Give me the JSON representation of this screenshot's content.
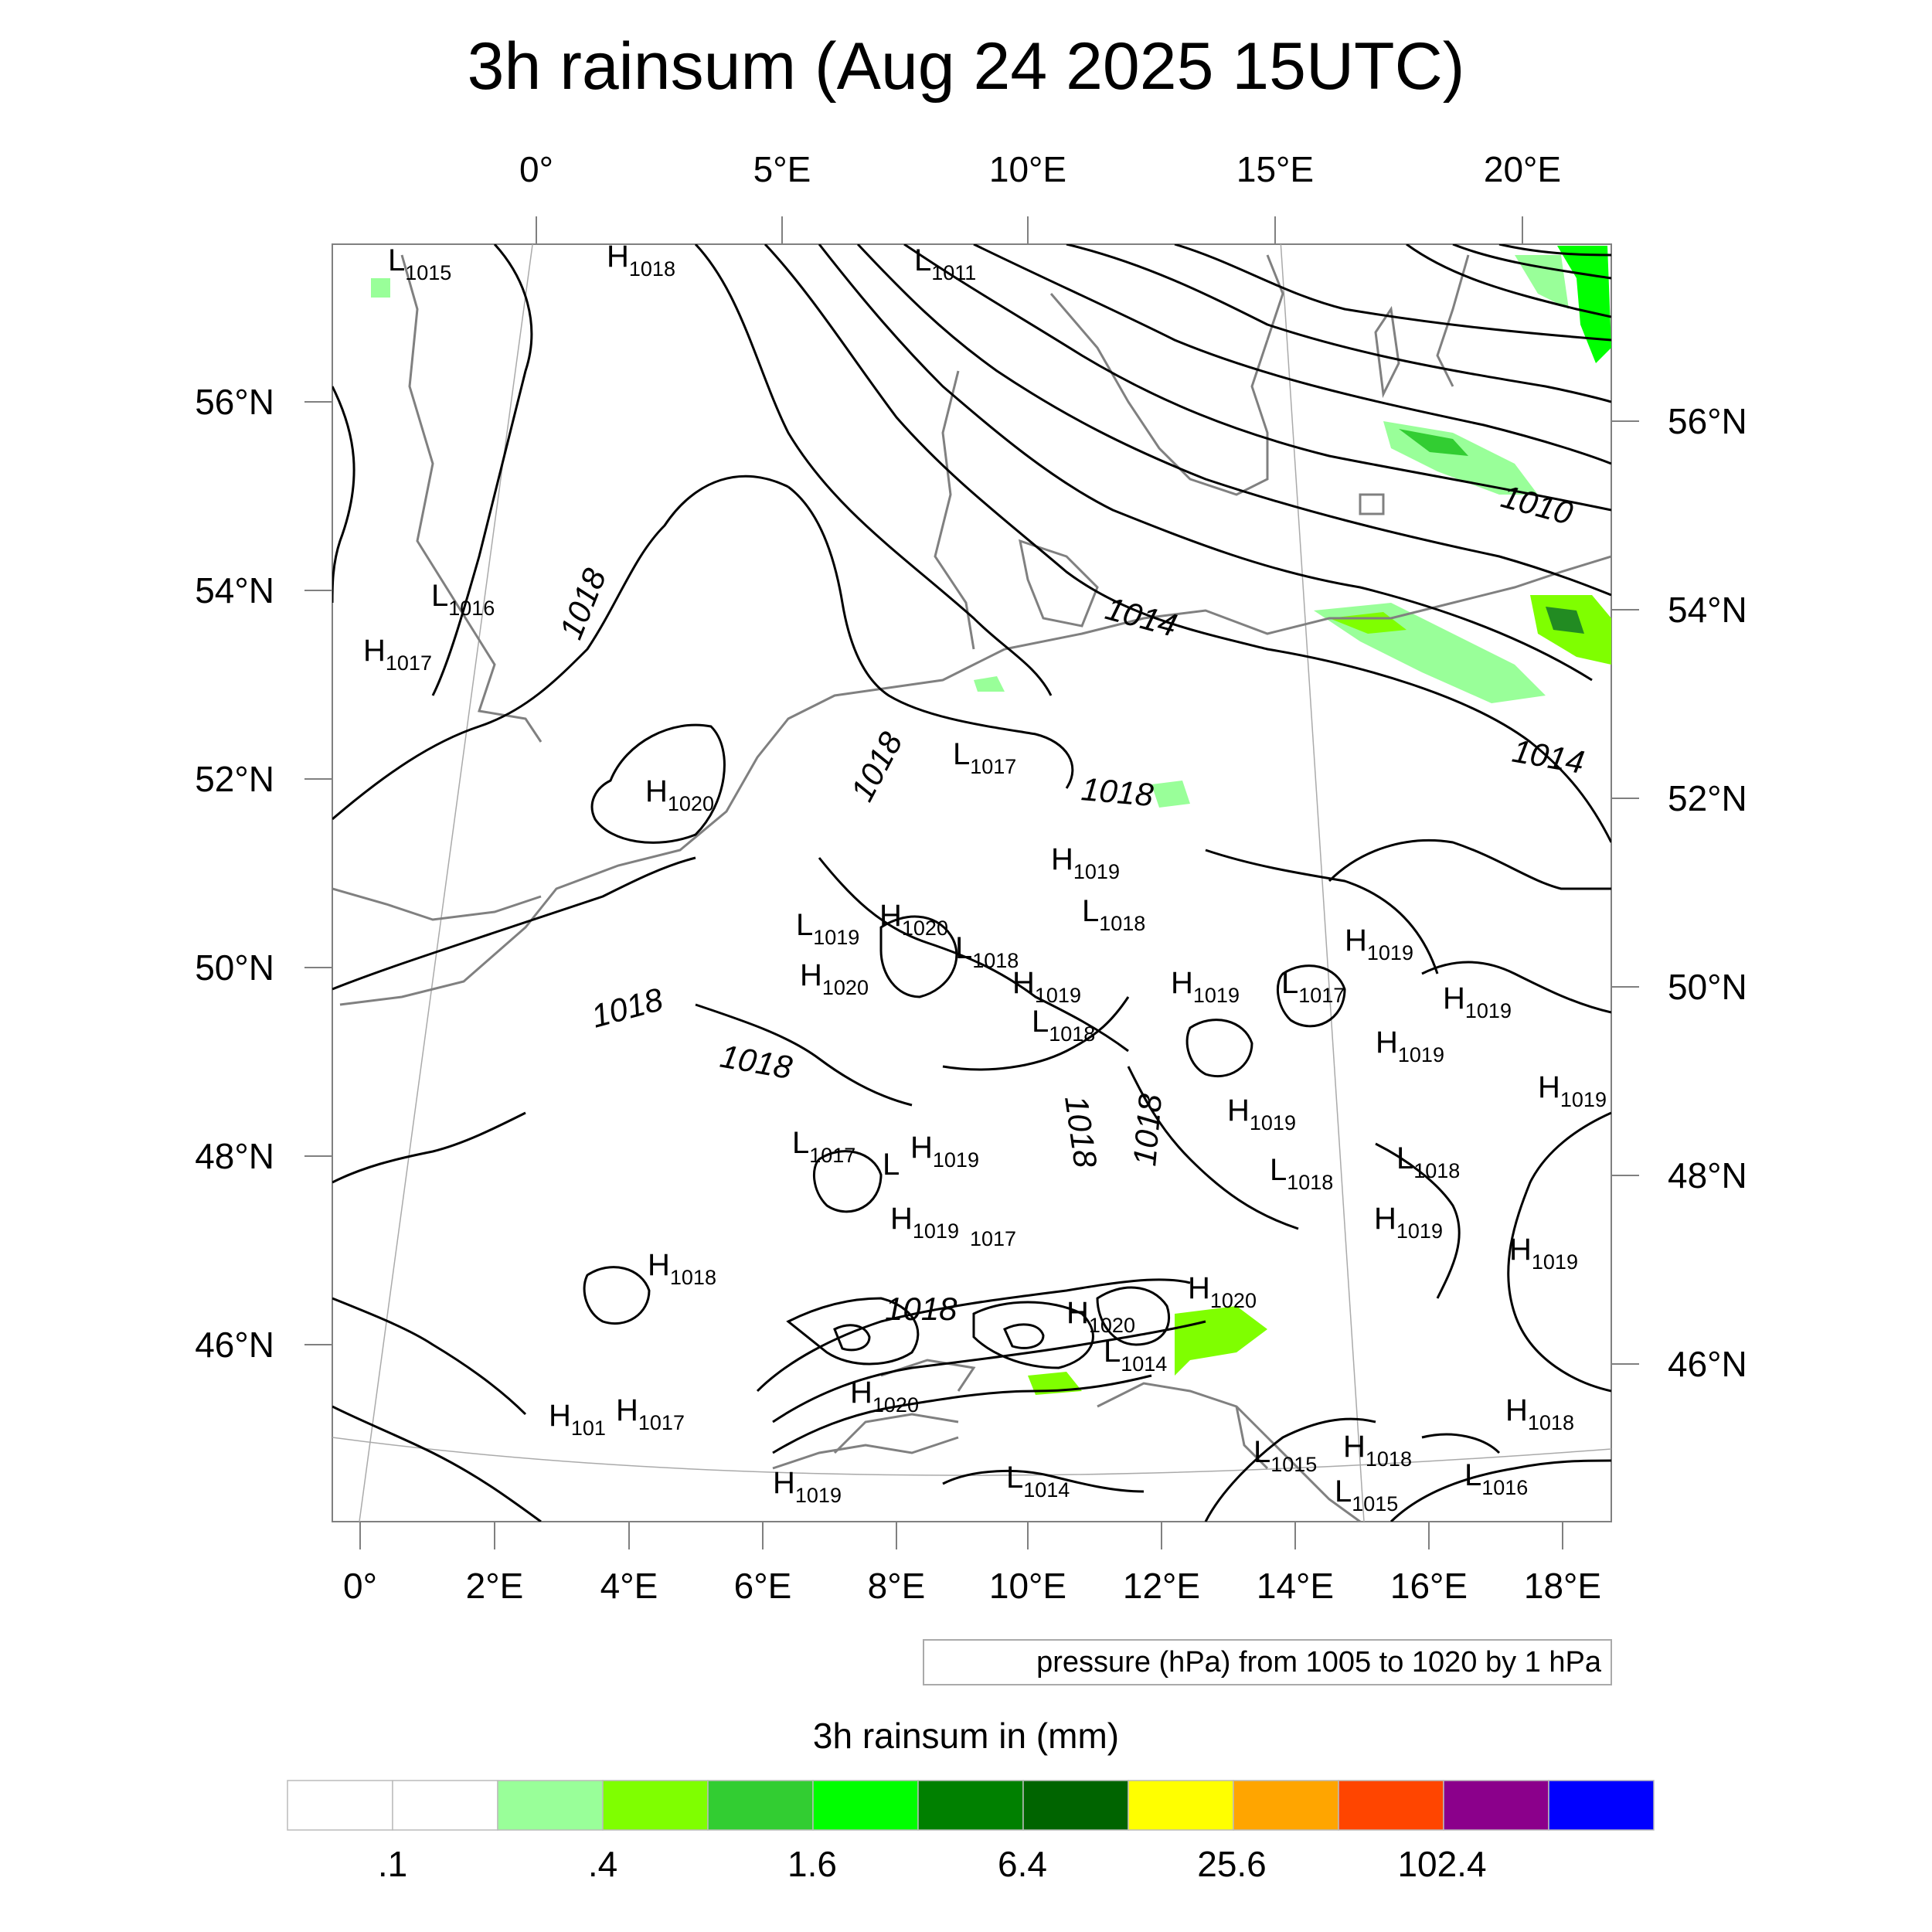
{
  "title": "3h rainsum (Aug 24 2025 15UTC)",
  "map": {
    "projection_note": "rotated grid; top/right axis graticule in geographic degrees, bottom axis in rotated-grid longitude",
    "top_lon_labels": [
      "0°",
      "5°E",
      "10°E",
      "15°E",
      "20°E"
    ],
    "left_lat_labels": [
      "56°N",
      "54°N",
      "52°N",
      "50°N",
      "48°N",
      "46°N"
    ],
    "right_lat_labels": [
      "56°N",
      "54°N",
      "52°N",
      "50°N",
      "48°N",
      "46°N"
    ],
    "bottom_lon_labels": [
      "0°",
      "2°E",
      "4°E",
      "6°E",
      "8°E",
      "10°E",
      "12°E",
      "14°E",
      "16°E",
      "18°E"
    ],
    "coastline_color": "#808080",
    "isobar_color": "#000000",
    "rain_colors_present": [
      "#99ff99",
      "#7fff00",
      "#32cd32",
      "#00ff00",
      "#228b22"
    ]
  },
  "pressure_centers": [
    {
      "type": "L",
      "value": "1015"
    },
    {
      "type": "H",
      "value": "1018"
    },
    {
      "type": "L",
      "value": "1011"
    },
    {
      "type": "L",
      "value": "1016"
    },
    {
      "type": "H",
      "value": "1017"
    },
    {
      "type": "H",
      "value": "1020"
    },
    {
      "type": "L",
      "value": "1017"
    },
    {
      "type": "H",
      "value": "1019"
    },
    {
      "type": "L",
      "value": "1018"
    },
    {
      "type": "L",
      "value": "1019"
    },
    {
      "type": "H",
      "value": "1020"
    },
    {
      "type": "L",
      "value": "1018"
    },
    {
      "type": "H",
      "value": "1020"
    },
    {
      "type": "H",
      "value": "1019"
    },
    {
      "type": "L",
      "value": "1018"
    },
    {
      "type": "H",
      "value": "1019"
    },
    {
      "type": "L",
      "value": "1017"
    },
    {
      "type": "H",
      "value": "1019"
    },
    {
      "type": "H",
      "value": "1019"
    },
    {
      "type": "H",
      "value": "1019"
    },
    {
      "type": "H",
      "value": "1019"
    },
    {
      "type": "H",
      "value": "1019"
    },
    {
      "type": "L",
      "value": "1017"
    },
    {
      "type": "H",
      "value": "1019"
    },
    {
      "type": "L",
      "value": "1018"
    },
    {
      "type": "L",
      "value": "1018"
    },
    {
      "type": "H",
      "value": "1019"
    },
    {
      "type": "H",
      "value": "1019"
    },
    {
      "type": "H",
      "value": "1019"
    },
    {
      "type": "H",
      "value": "1018"
    },
    {
      "type": "H",
      "value": "1020"
    },
    {
      "type": "H",
      "value": "1020"
    },
    {
      "type": "L",
      "value": "1014"
    },
    {
      "type": "H",
      "value": "1020"
    },
    {
      "type": "H",
      "value": "101"
    },
    {
      "type": "H",
      "value": "1017"
    },
    {
      "type": "H",
      "value": "1018"
    },
    {
      "type": "L",
      "value": "1015"
    },
    {
      "type": "H",
      "value": "1018"
    },
    {
      "type": "L",
      "value": "1016"
    },
    {
      "type": "L",
      "value": "1015"
    },
    {
      "type": "H",
      "value": "1019"
    },
    {
      "type": "L",
      "value": "1014"
    }
  ],
  "contour_labels": [
    "1018",
    "1018",
    "1018",
    "1018",
    "1018",
    "1018",
    "1018",
    "1018",
    "1014",
    "1014",
    "1010"
  ],
  "fragment_labels": [
    "L",
    "1017"
  ],
  "contour_info": "pressure (hPa) from 1005 to 1020 by 1 hPa",
  "legend": {
    "title": "3h rainsum in (mm)",
    "colors": [
      "#ffffff",
      "#ffffff",
      "#99ff99",
      "#7fff00",
      "#32cd32",
      "#00ff00",
      "#008000",
      "#006400",
      "#ffff00",
      "#ffa500",
      "#ff4500",
      "#8b008b",
      "#0000ff"
    ],
    "labels": [
      ".1",
      ".4",
      "1.6",
      "6.4",
      "25.6",
      "102.4"
    ]
  }
}
